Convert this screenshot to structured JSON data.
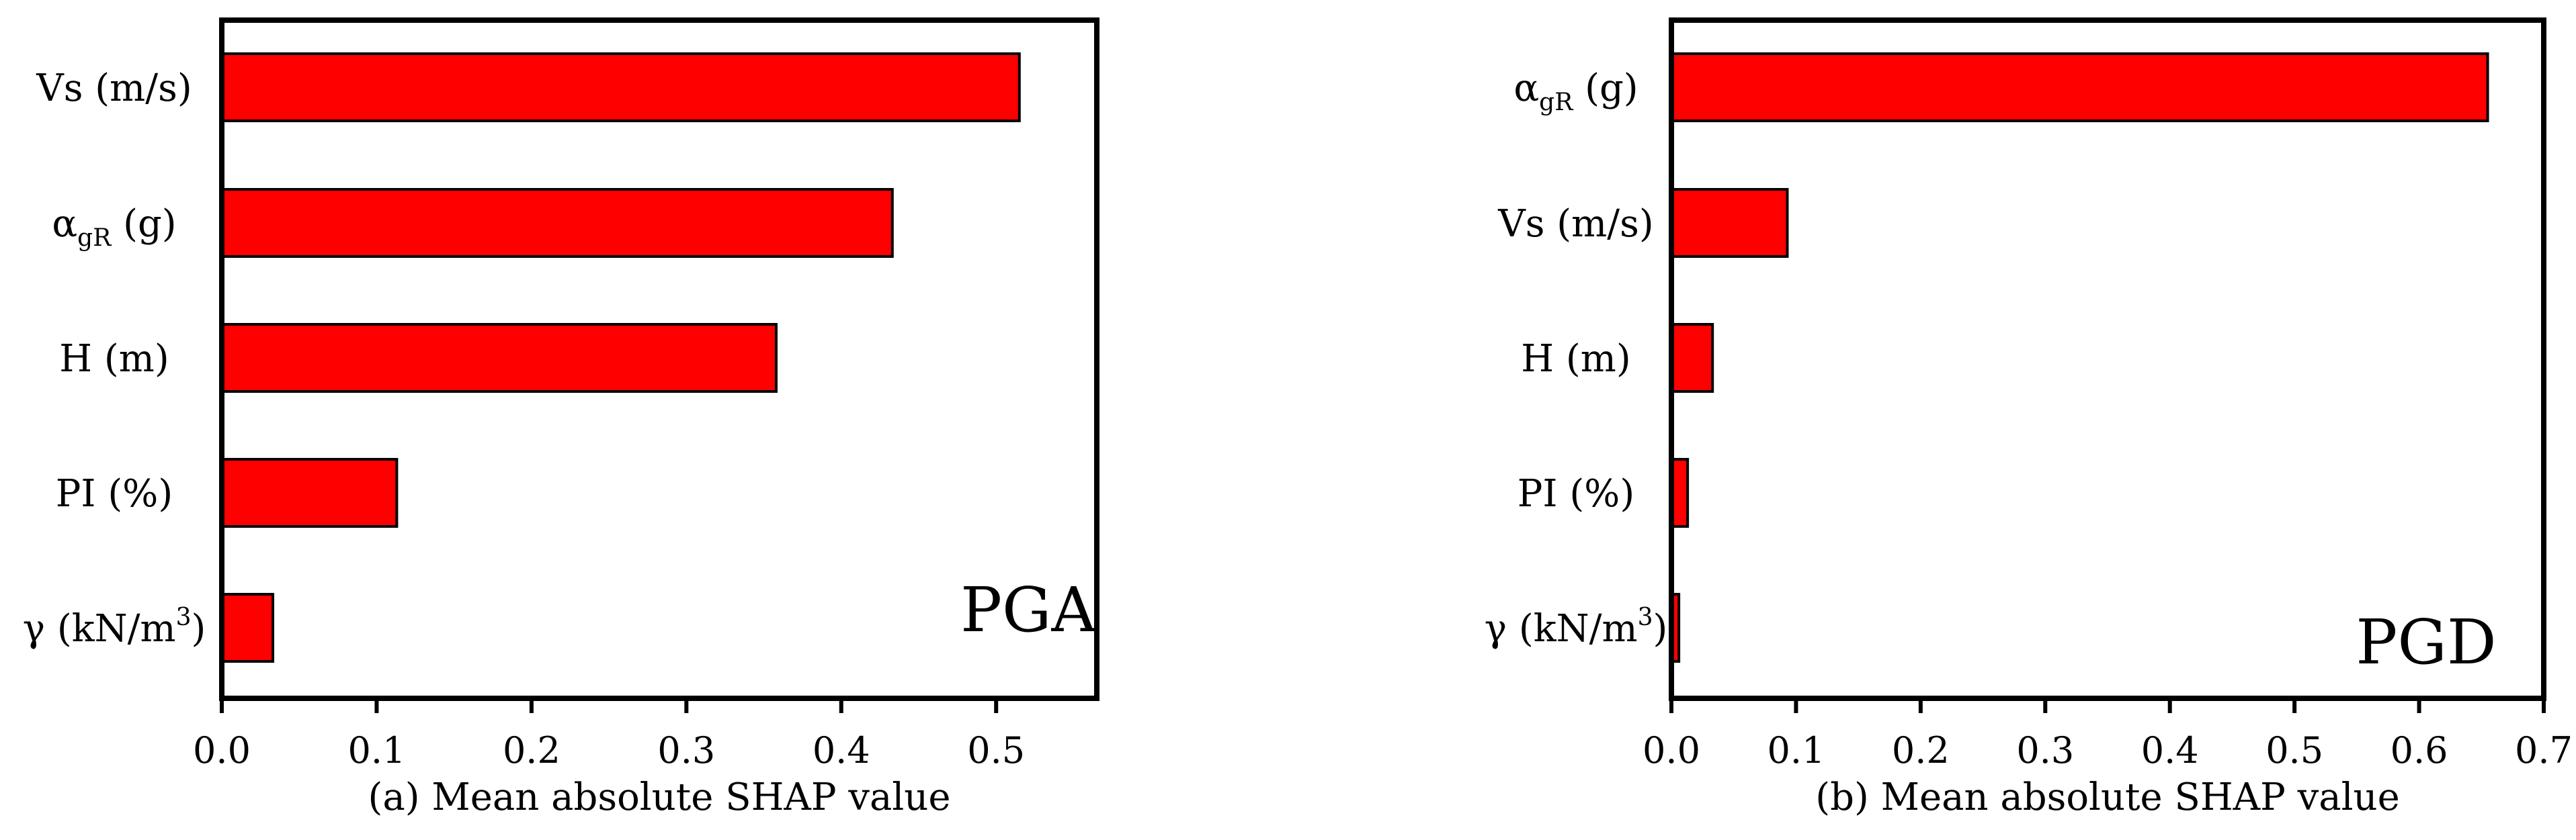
{
  "figure": {
    "description_free": true
  },
  "chart_data": [
    {
      "type": "bar",
      "orientation": "horizontal",
      "panel": "(a)",
      "annotation": "PGA",
      "xlabel": "(a) Mean absolute SHAP value",
      "categories": [
        {
          "text": "Vs (m/s)"
        },
        {
          "base": "α",
          "sub": "gR",
          "rest": " (g)"
        },
        {
          "text": "H (m)"
        },
        {
          "text": "PI (%)"
        },
        {
          "base": "γ (kN/m",
          "sup": "3",
          "rest": ")"
        }
      ],
      "values": [
        0.515,
        0.433,
        0.358,
        0.113,
        0.033
      ],
      "xlim": [
        0,
        0.565
      ],
      "xticks": [
        0.0,
        0.1,
        0.2,
        0.3,
        0.4,
        0.5
      ],
      "xtick_labels": [
        "0.0",
        "0.1",
        "0.2",
        "0.3",
        "0.4",
        "0.5"
      ],
      "grid": false,
      "bar_color": "#ff0000"
    },
    {
      "type": "bar",
      "orientation": "horizontal",
      "panel": "(b)",
      "annotation": "PGD",
      "xlabel": "(b) Mean absolute SHAP value",
      "categories": [
        {
          "base": "α",
          "sub": "gR",
          "rest": " (g)"
        },
        {
          "text": "Vs (m/s)"
        },
        {
          "text": "H (m)"
        },
        {
          "text": "PI (%)"
        },
        {
          "base": "γ (kN/m",
          "sup": "3",
          "rest": ")"
        }
      ],
      "values": [
        0.655,
        0.093,
        0.033,
        0.013,
        0.006
      ],
      "xlim": [
        0,
        0.7
      ],
      "xticks": [
        0.0,
        0.1,
        0.2,
        0.3,
        0.4,
        0.5,
        0.6,
        0.7
      ],
      "xtick_labels": [
        "0.0",
        "0.1",
        "0.2",
        "0.3",
        "0.4",
        "0.5",
        "0.6",
        "0.7"
      ],
      "grid": false,
      "bar_color": "#ff0000"
    }
  ]
}
